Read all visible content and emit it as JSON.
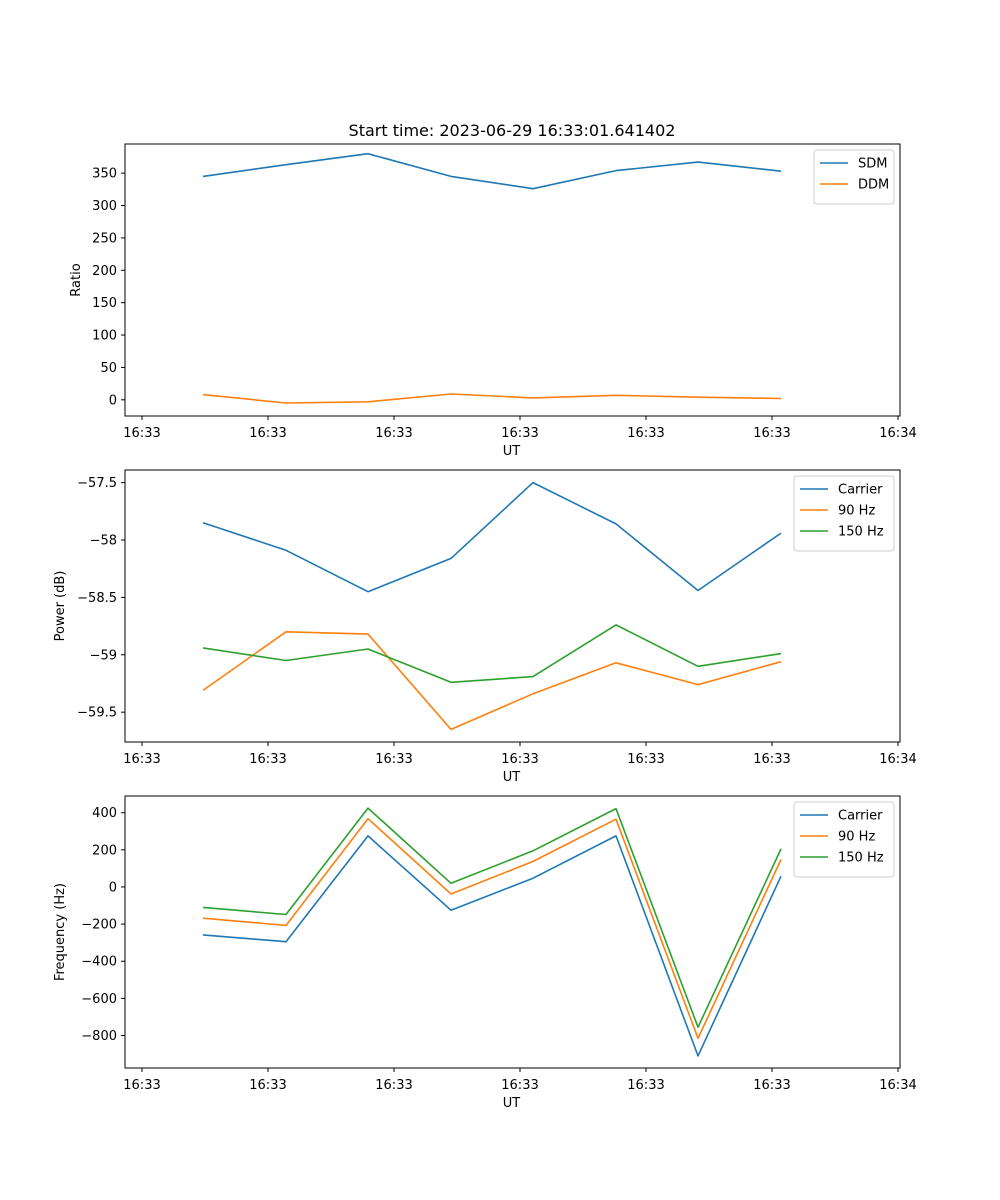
{
  "figure": {
    "title": "Start time: 2023-06-29 16:33:01.641402"
  },
  "chart_data": [
    {
      "type": "line",
      "xlabel": "UT",
      "ylabel": "Ratio",
      "x_ticks": [
        "16:33",
        "16:33",
        "16:33",
        "16:33",
        "16:33",
        "16:33",
        "16:34"
      ],
      "y_ticks": [
        0,
        50,
        100,
        150,
        200,
        250,
        300,
        350
      ],
      "ylim": [
        -25,
        395
      ],
      "grid": false,
      "legend": "top-right",
      "series": [
        {
          "name": "SDM",
          "color": "#1f77b4",
          "values": [
            345,
            363,
            380,
            345,
            326,
            354,
            367,
            353
          ]
        },
        {
          "name": "DDM",
          "color": "#ff7f0e",
          "values": [
            8,
            -5,
            -3,
            9,
            3,
            7,
            4,
            2
          ]
        }
      ]
    },
    {
      "type": "line",
      "xlabel": "UT",
      "ylabel": "Power (dB)",
      "x_ticks": [
        "16:33",
        "16:33",
        "16:33",
        "16:33",
        "16:33",
        "16:33",
        "16:34"
      ],
      "y_ticks": [
        -59.5,
        -59.0,
        -58.5,
        -58.0,
        -57.5
      ],
      "ylim": [
        -59.76,
        -57.39
      ],
      "grid": false,
      "legend": "top-right",
      "series": [
        {
          "name": "Carrier",
          "color": "#1f77b4",
          "values": [
            -57.85,
            -58.09,
            -58.45,
            -58.16,
            -57.5,
            -57.86,
            -58.44,
            -57.94
          ]
        },
        {
          "name": "90 Hz",
          "color": "#ff7f0e",
          "values": [
            -59.31,
            -58.8,
            -58.82,
            -59.65,
            -59.34,
            -59.07,
            -59.26,
            -59.06
          ]
        },
        {
          "name": "150 Hz",
          "color": "#2ca02c",
          "values": [
            -58.94,
            -59.05,
            -58.95,
            -59.24,
            -59.19,
            -58.74,
            -59.1,
            -58.99
          ]
        }
      ]
    },
    {
      "type": "line",
      "xlabel": "UT",
      "ylabel": "Frequency (Hz)",
      "x_ticks": [
        "16:33",
        "16:33",
        "16:33",
        "16:33",
        "16:33",
        "16:33",
        "16:34"
      ],
      "y_ticks": [
        -800,
        -600,
        -400,
        -200,
        0,
        200,
        400
      ],
      "ylim": [
        -975,
        490
      ],
      "grid": false,
      "legend": "top-right",
      "series": [
        {
          "name": "Carrier",
          "color": "#1f77b4",
          "values": [
            -258,
            -295,
            275,
            -125,
            47,
            275,
            -910,
            58
          ]
        },
        {
          "name": "90 Hz",
          "color": "#ff7f0e",
          "values": [
            -168,
            -207,
            368,
            -38,
            138,
            365,
            -815,
            148
          ]
        },
        {
          "name": "150 Hz",
          "color": "#2ca02c",
          "values": [
            -110,
            -148,
            425,
            20,
            195,
            422,
            -755,
            205
          ]
        }
      ]
    }
  ]
}
